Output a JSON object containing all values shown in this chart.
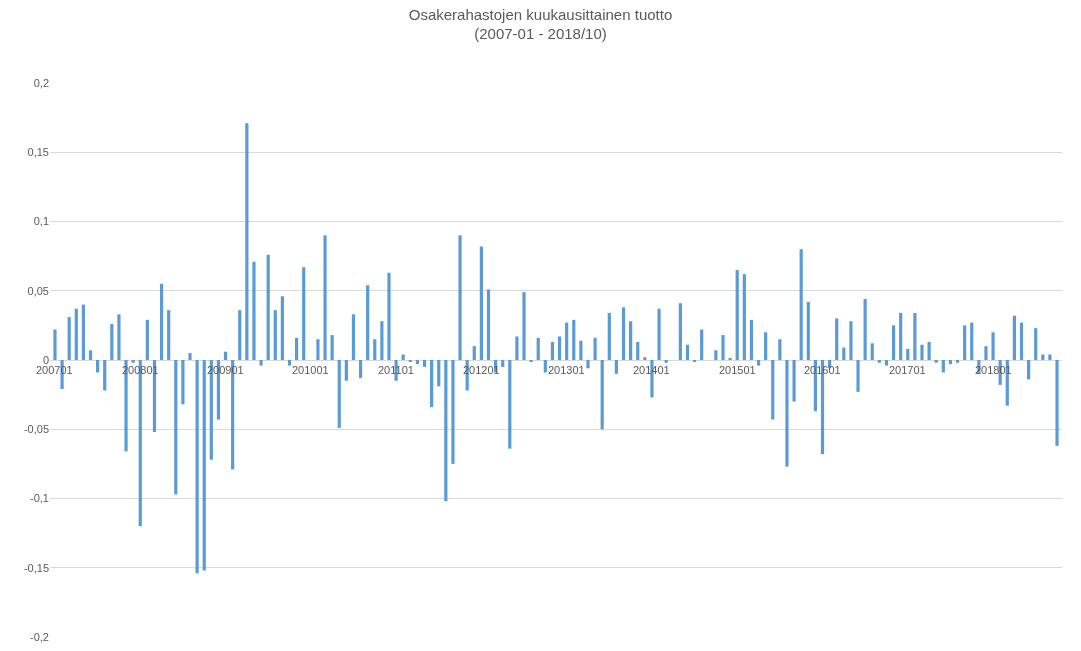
{
  "chart_data": {
    "type": "bar",
    "title": "Osakerahastojen kuukausittainen tuotto\n(2007-01 - 2018/10)",
    "categories": [
      "200701",
      null,
      null,
      null,
      null,
      null,
      null,
      null,
      null,
      null,
      null,
      null,
      "200801",
      null,
      null,
      null,
      null,
      null,
      null,
      null,
      null,
      null,
      null,
      null,
      "200901",
      null,
      null,
      null,
      null,
      null,
      null,
      null,
      null,
      null,
      null,
      null,
      "201001",
      null,
      null,
      null,
      null,
      null,
      null,
      null,
      null,
      null,
      null,
      null,
      "201101",
      null,
      null,
      null,
      null,
      null,
      null,
      null,
      null,
      null,
      null,
      null,
      "201201",
      null,
      null,
      null,
      null,
      null,
      null,
      null,
      null,
      null,
      null,
      null,
      "201301",
      null,
      null,
      null,
      null,
      null,
      null,
      null,
      null,
      null,
      null,
      null,
      "201401",
      null,
      null,
      null,
      null,
      null,
      null,
      null,
      null,
      null,
      null,
      null,
      "201501",
      null,
      null,
      null,
      null,
      null,
      null,
      null,
      null,
      null,
      null,
      null,
      "201601",
      null,
      null,
      null,
      null,
      null,
      null,
      null,
      null,
      null,
      null,
      null,
      "201701",
      null,
      null,
      null,
      null,
      null,
      null,
      null,
      null,
      null,
      null,
      null,
      "201801",
      null,
      null,
      null,
      null,
      null,
      null,
      null,
      null,
      null
    ],
    "values": [
      0.022,
      -0.021,
      0.031,
      0.037,
      0.04,
      0.007,
      -0.009,
      -0.022,
      0.026,
      0.033,
      -0.066,
      -0.002,
      -0.12,
      0.029,
      -0.052,
      0.055,
      0.036,
      -0.097,
      -0.032,
      0.005,
      -0.154,
      -0.152,
      -0.072,
      -0.043,
      0.006,
      -0.079,
      0.036,
      0.171,
      0.071,
      -0.004,
      0.076,
      0.036,
      0.046,
      -0.004,
      0.016,
      0.067,
      0.0,
      0.015,
      0.09,
      0.018,
      -0.049,
      -0.015,
      0.033,
      -0.013,
      0.054,
      0.015,
      0.028,
      0.063,
      -0.015,
      0.004,
      -0.001,
      -0.003,
      -0.005,
      -0.034,
      -0.019,
      -0.102,
      -0.075,
      0.09,
      -0.022,
      0.01,
      0.082,
      0.051,
      -0.009,
      -0.005,
      -0.064,
      0.017,
      0.049,
      -0.001,
      0.016,
      -0.009,
      0.013,
      0.017,
      0.027,
      0.029,
      0.014,
      -0.006,
      0.016,
      -0.05,
      0.034,
      -0.01,
      0.038,
      0.028,
      0.013,
      0.002,
      -0.027,
      0.037,
      -0.002,
      0.0,
      0.041,
      0.011,
      -0.001,
      0.022,
      0.0,
      0.007,
      0.018,
      0.001,
      0.065,
      0.062,
      0.029,
      -0.004,
      0.02,
      -0.043,
      0.015,
      -0.077,
      -0.03,
      0.08,
      0.042,
      -0.037,
      -0.068,
      -0.006,
      0.03,
      0.009,
      0.028,
      -0.023,
      0.044,
      0.012,
      -0.002,
      -0.004,
      0.025,
      0.034,
      0.008,
      0.034,
      0.011,
      0.013,
      -0.002,
      -0.009,
      -0.003,
      -0.002,
      0.025,
      0.027,
      -0.01,
      0.01,
      0.02,
      -0.018,
      -0.033,
      0.032,
      0.027,
      -0.014,
      0.023,
      0.004,
      0.004,
      -0.062
    ],
    "color": "#5b9bd5",
    "ylim": [
      -0.2,
      0.2
    ],
    "yticks": [
      {
        "value": -0.2,
        "label": "-0,2"
      },
      {
        "value": -0.15,
        "label": "-0,15"
      },
      {
        "value": -0.1,
        "label": "-0,1"
      },
      {
        "value": -0.05,
        "label": "-0,05"
      },
      {
        "value": 0,
        "label": "0"
      },
      {
        "value": 0.05,
        "label": "0,05"
      },
      {
        "value": 0.1,
        "label": "0,1"
      },
      {
        "value": 0.15,
        "label": "0,15"
      },
      {
        "value": 0.2,
        "label": "0,2"
      }
    ],
    "grid": "y"
  }
}
